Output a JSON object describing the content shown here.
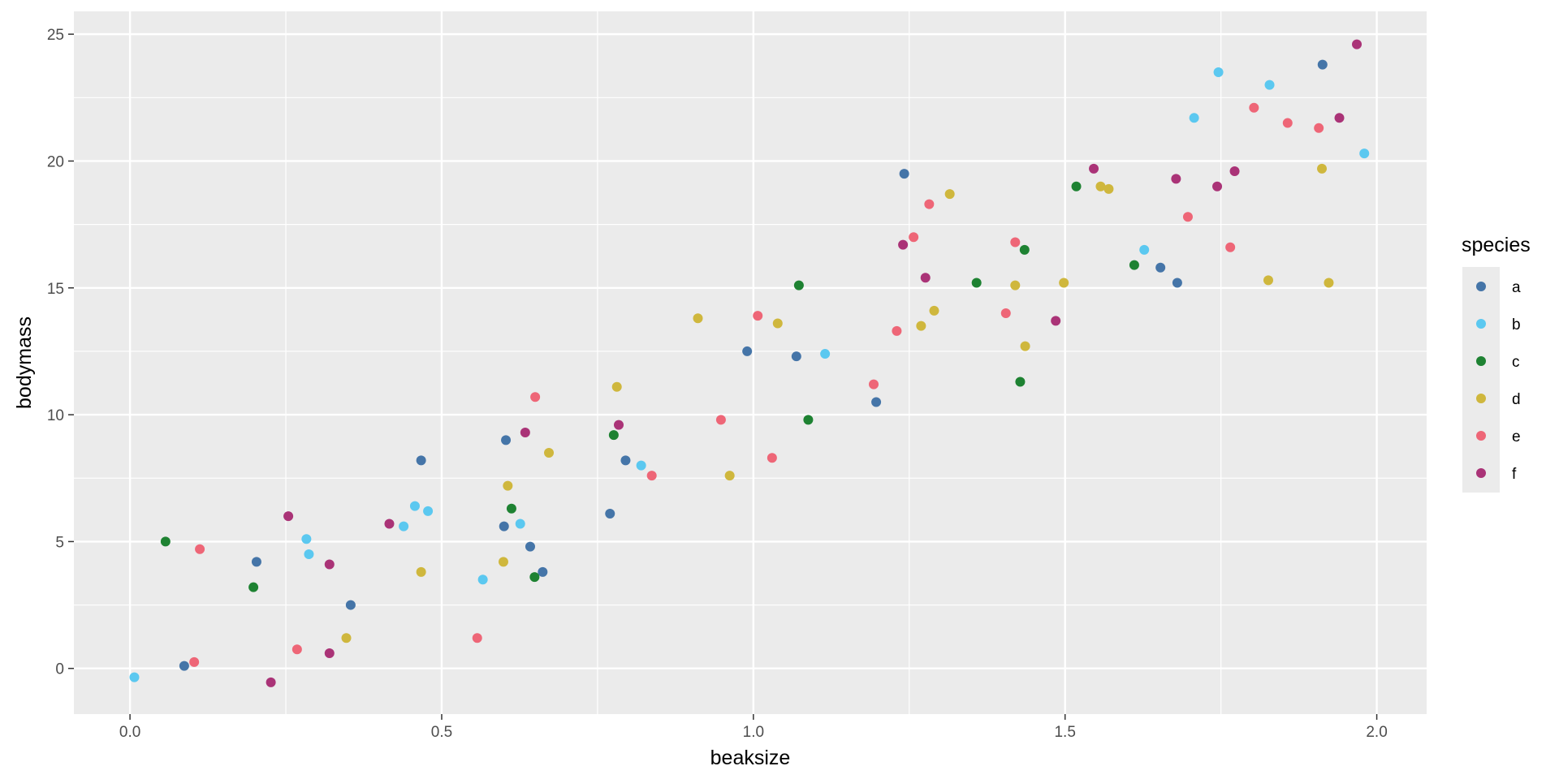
{
  "chart_data": {
    "type": "scatter",
    "title": "",
    "xlabel": "beaksize",
    "ylabel": "bodymass",
    "xlim": [
      -0.09,
      2.08
    ],
    "ylim": [
      -1.8,
      25.9
    ],
    "x_ticks": [
      0.0,
      0.5,
      1.0,
      1.5,
      2.0
    ],
    "x_tick_labels": [
      "0.0",
      "0.5",
      "1.0",
      "1.5",
      "2.0"
    ],
    "y_ticks": [
      0,
      5,
      10,
      15,
      20,
      25
    ],
    "y_tick_labels": [
      "0",
      "5",
      "10",
      "15",
      "20",
      "25"
    ],
    "grid": true,
    "background": "#ebebeb",
    "legend": {
      "title": "species",
      "position": "right"
    },
    "series": [
      {
        "name": "a",
        "color": "#4575a8",
        "points": [
          [
            0.087,
            0.1
          ],
          [
            0.203,
            4.2
          ],
          [
            0.354,
            2.5
          ],
          [
            0.467,
            8.2
          ],
          [
            0.603,
            9.0
          ],
          [
            0.6,
            5.6
          ],
          [
            0.642,
            4.8
          ],
          [
            0.662,
            3.8
          ],
          [
            0.77,
            6.1
          ],
          [
            0.795,
            8.2
          ],
          [
            0.99,
            12.5
          ],
          [
            1.069,
            12.3
          ],
          [
            1.197,
            10.5
          ],
          [
            1.242,
            19.5
          ],
          [
            1.653,
            15.8
          ],
          [
            1.68,
            15.2
          ],
          [
            1.913,
            23.8
          ]
        ]
      },
      {
        "name": "b",
        "color": "#5bc8f0",
        "points": [
          [
            0.007,
            -0.35
          ],
          [
            0.283,
            5.1
          ],
          [
            0.287,
            4.5
          ],
          [
            0.439,
            5.6
          ],
          [
            0.457,
            6.4
          ],
          [
            0.478,
            6.2
          ],
          [
            0.566,
            3.5
          ],
          [
            0.626,
            5.7
          ],
          [
            0.82,
            8.0
          ],
          [
            1.115,
            12.4
          ],
          [
            1.627,
            16.5
          ],
          [
            1.707,
            21.7
          ],
          [
            1.746,
            23.5
          ],
          [
            1.828,
            23.0
          ],
          [
            1.98,
            20.3
          ]
        ]
      },
      {
        "name": "c",
        "color": "#1e8232",
        "points": [
          [
            0.057,
            5.0
          ],
          [
            0.198,
            3.2
          ],
          [
            0.649,
            3.6
          ],
          [
            0.612,
            6.3
          ],
          [
            0.776,
            9.2
          ],
          [
            1.073,
            15.1
          ],
          [
            1.088,
            9.8
          ],
          [
            1.358,
            15.2
          ],
          [
            1.428,
            11.3
          ],
          [
            1.435,
            16.5
          ],
          [
            1.518,
            19.0
          ],
          [
            1.611,
            15.9
          ]
        ]
      },
      {
        "name": "d",
        "color": "#cfb73d",
        "points": [
          [
            0.347,
            1.2
          ],
          [
            0.467,
            3.8
          ],
          [
            0.599,
            4.2
          ],
          [
            0.606,
            7.2
          ],
          [
            0.672,
            8.5
          ],
          [
            0.781,
            11.1
          ],
          [
            0.911,
            13.8
          ],
          [
            0.962,
            7.6
          ],
          [
            1.039,
            13.6
          ],
          [
            1.269,
            13.5
          ],
          [
            1.29,
            14.1
          ],
          [
            1.315,
            18.7
          ],
          [
            1.42,
            15.1
          ],
          [
            1.436,
            12.7
          ],
          [
            1.498,
            15.2
          ],
          [
            1.557,
            19.0
          ],
          [
            1.57,
            18.9
          ],
          [
            1.826,
            15.3
          ],
          [
            1.912,
            19.7
          ],
          [
            1.923,
            15.2
          ]
        ]
      },
      {
        "name": "e",
        "color": "#ee6677",
        "points": [
          [
            0.103,
            0.25
          ],
          [
            0.112,
            4.7
          ],
          [
            0.268,
            0.75
          ],
          [
            0.557,
            1.2
          ],
          [
            0.65,
            10.7
          ],
          [
            0.837,
            7.6
          ],
          [
            0.948,
            9.8
          ],
          [
            1.007,
            13.9
          ],
          [
            1.03,
            8.3
          ],
          [
            1.193,
            11.2
          ],
          [
            1.23,
            13.3
          ],
          [
            1.257,
            17.0
          ],
          [
            1.282,
            18.3
          ],
          [
            1.405,
            14.0
          ],
          [
            1.42,
            16.8
          ],
          [
            1.697,
            17.8
          ],
          [
            1.765,
            16.6
          ],
          [
            1.803,
            22.1
          ],
          [
            1.857,
            21.5
          ],
          [
            1.907,
            21.3
          ]
        ]
      },
      {
        "name": "f",
        "color": "#aa3377",
        "points": [
          [
            0.226,
            -0.55
          ],
          [
            0.254,
            6.0
          ],
          [
            0.32,
            4.1
          ],
          [
            0.32,
            0.6
          ],
          [
            0.416,
            5.7
          ],
          [
            0.634,
            9.3
          ],
          [
            0.784,
            9.6
          ],
          [
            1.24,
            16.7
          ],
          [
            1.276,
            15.4
          ],
          [
            1.485,
            13.7
          ],
          [
            1.546,
            19.7
          ],
          [
            1.678,
            19.3
          ],
          [
            1.744,
            19.0
          ],
          [
            1.772,
            19.6
          ],
          [
            1.94,
            21.7
          ],
          [
            1.968,
            24.6
          ]
        ]
      }
    ]
  }
}
